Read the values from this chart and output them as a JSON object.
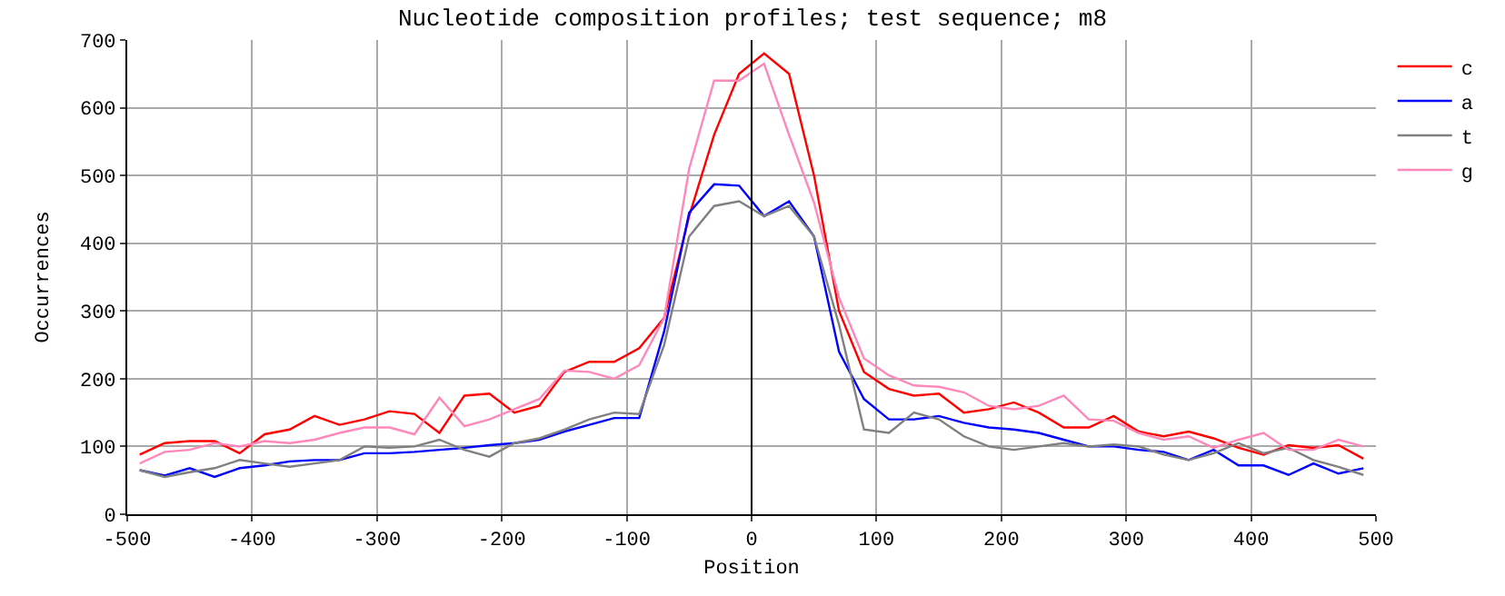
{
  "chart_data": {
    "type": "line",
    "title": "Nucleotide composition profiles; test sequence; m8",
    "xlabel": "Position",
    "ylabel": "Occurrences",
    "x": [
      -490,
      -470,
      -450,
      -430,
      -410,
      -390,
      -370,
      -350,
      -330,
      -310,
      -290,
      -270,
      -250,
      -230,
      -210,
      -190,
      -170,
      -150,
      -130,
      -110,
      -90,
      -70,
      -50,
      -30,
      -10,
      10,
      30,
      50,
      70,
      90,
      110,
      130,
      150,
      170,
      190,
      210,
      230,
      250,
      270,
      290,
      310,
      330,
      350,
      370,
      390,
      410,
      430,
      450,
      470,
      490
    ],
    "series": [
      {
        "name": "c",
        "color": "#ff0000",
        "values": [
          88,
          105,
          108,
          108,
          90,
          118,
          125,
          145,
          132,
          140,
          152,
          148,
          120,
          175,
          178,
          150,
          160,
          210,
          225,
          225,
          245,
          290,
          440,
          560,
          650,
          680,
          650,
          500,
          300,
          210,
          185,
          175,
          178,
          150,
          155,
          165,
          150,
          128,
          128,
          145,
          122,
          115,
          122,
          112,
          98,
          88,
          102,
          98,
          102,
          82
        ]
      },
      {
        "name": "a",
        "color": "#0000ff",
        "values": [
          65,
          57,
          68,
          55,
          68,
          72,
          78,
          80,
          80,
          90,
          90,
          92,
          95,
          98,
          102,
          105,
          110,
          122,
          132,
          142,
          142,
          270,
          445,
          487,
          485,
          440,
          462,
          410,
          240,
          170,
          140,
          140,
          145,
          135,
          128,
          125,
          120,
          110,
          100,
          100,
          95,
          92,
          80,
          95,
          72,
          72,
          58,
          75,
          60,
          68
        ]
      },
      {
        "name": "t",
        "color": "#808080",
        "values": [
          65,
          55,
          62,
          68,
          80,
          75,
          70,
          75,
          80,
          100,
          98,
          100,
          110,
          95,
          85,
          105,
          112,
          125,
          140,
          150,
          148,
          250,
          410,
          455,
          462,
          440,
          455,
          410,
          280,
          125,
          120,
          150,
          140,
          115,
          100,
          95,
          100,
          105,
          100,
          103,
          100,
          88,
          80,
          90,
          105,
          90,
          98,
          80,
          70,
          58
        ]
      },
      {
        "name": "g",
        "color": "#ff88bb",
        "values": [
          75,
          92,
          95,
          105,
          100,
          108,
          105,
          110,
          120,
          128,
          128,
          118,
          172,
          130,
          140,
          155,
          170,
          212,
          210,
          200,
          220,
          290,
          510,
          640,
          640,
          665,
          560,
          460,
          320,
          230,
          205,
          190,
          188,
          180,
          160,
          155,
          160,
          175,
          140,
          138,
          120,
          110,
          115,
          98,
          110,
          120,
          95,
          95,
          110,
          100
        ]
      }
    ],
    "xlim": [
      -500,
      500
    ],
    "xticks": [
      -500,
      -400,
      -300,
      -200,
      -100,
      0,
      100,
      200,
      300,
      400,
      500
    ],
    "ylim": [
      0,
      700
    ],
    "yticks": [
      0,
      100,
      200,
      300,
      400,
      500,
      600,
      700
    ],
    "grid": true,
    "legend": "top right",
    "ref_lines": [
      {
        "axis": "x",
        "value": 0,
        "color": "#000000"
      }
    ]
  }
}
